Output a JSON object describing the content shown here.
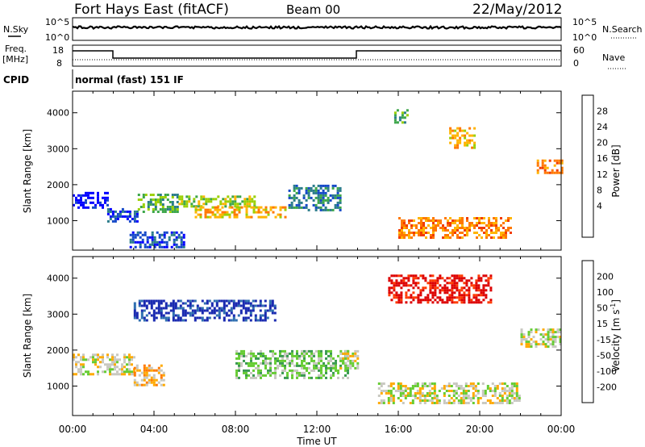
{
  "header": {
    "station": "Fort Hays East (fitACF)",
    "beam": "Beam 00",
    "date": "22/May/2012"
  },
  "strip_panels": {
    "left_labels": [
      "N.Sky",
      "Freq.",
      "[MHz]",
      "CPID"
    ],
    "right_labels": [
      "N.Search",
      "Nave"
    ],
    "noise_ticks_left": [
      "10^5",
      "10^0"
    ],
    "noise_ticks_right": [
      "10^5",
      "10^0"
    ],
    "freq_ticks": [
      "18",
      "8"
    ],
    "nave_ticks": [
      "60",
      "0"
    ],
    "cpid_text": "normal (fast) 151 IF"
  },
  "chart_data": [
    {
      "type": "heatmap",
      "name": "power",
      "ylabel": "Slant Range [km]",
      "xlabel": "",
      "x_ticks": [
        "00:00",
        "04:00",
        "08:00",
        "12:00",
        "16:00",
        "20:00",
        "00:00"
      ],
      "y_ticks": [
        1000,
        2000,
        3000,
        4000
      ],
      "xlim_hours": [
        0,
        24
      ],
      "ylim_km": [
        180,
        4600
      ],
      "colorbar": {
        "label": "Power [dB]",
        "ticks": [
          "28",
          "24",
          "20",
          "16",
          "12",
          "8",
          "4"
        ],
        "colors": [
          "#dd0000",
          "#f23b00",
          "#ff7800",
          "#ffb400",
          "#9ad000",
          "#3ca64a",
          "#2a7c8a",
          "#1448c8",
          "#0000ff"
        ]
      },
      "regions": [
        {
          "x": [
            0.0,
            1.7
          ],
          "y": [
            1350,
            1800
          ],
          "level": 8
        },
        {
          "x": [
            1.7,
            3.2
          ],
          "y": [
            950,
            1350
          ],
          "level": 7
        },
        {
          "x": [
            3.2,
            5.2
          ],
          "y": [
            1250,
            1750
          ],
          "level": 5
        },
        {
          "x": [
            5.2,
            9.0
          ],
          "y": [
            1400,
            1700
          ],
          "level": 4
        },
        {
          "x": [
            6.0,
            10.5
          ],
          "y": [
            1100,
            1400
          ],
          "level": 3
        },
        {
          "x": [
            2.8,
            5.5
          ],
          "y": [
            250,
            700
          ],
          "level": 7
        },
        {
          "x": [
            10.6,
            13.2
          ],
          "y": [
            1300,
            2000
          ],
          "level": 6
        },
        {
          "x": [
            15.8,
            16.5
          ],
          "y": [
            3700,
            4100
          ],
          "level": 5
        },
        {
          "x": [
            18.5,
            19.8
          ],
          "y": [
            3000,
            3600
          ],
          "level": 3
        },
        {
          "x": [
            16.0,
            21.5
          ],
          "y": [
            500,
            1100
          ],
          "level": 2
        },
        {
          "x": [
            22.8,
            24.0
          ],
          "y": [
            2300,
            2700
          ],
          "level": 2
        }
      ]
    },
    {
      "type": "heatmap",
      "name": "velocity",
      "ylabel": "Slant Range [km]",
      "xlabel": "Time UT",
      "x_ticks": [
        "00:00",
        "04:00",
        "08:00",
        "12:00",
        "16:00",
        "20:00",
        "00:00"
      ],
      "y_ticks": [
        1000,
        2000,
        3000,
        4000
      ],
      "xlim_hours": [
        0,
        24
      ],
      "ylim_km": [
        180,
        4600
      ],
      "colorbar": {
        "label": "Velocity [m s-1]",
        "label_main": "Velocity [m s",
        "label_exp": "-1",
        "label_tail": "]",
        "ticks": [
          "200",
          "100",
          "50",
          "15",
          "-15",
          "-50",
          "-100",
          "-200"
        ],
        "colors": [
          "#1a2ab0",
          "#2f6fb0",
          "#3a9a50",
          "#66cc33",
          "#c8c8c0",
          "#ffaa00",
          "#ff7a00",
          "#ff3a00",
          "#dd0000"
        ]
      },
      "regions": [
        {
          "x": [
            0.0,
            3.0
          ],
          "y": [
            1300,
            1900
          ],
          "level": 4
        },
        {
          "x": [
            3.0,
            4.5
          ],
          "y": [
            1000,
            1600
          ],
          "level": 5
        },
        {
          "x": [
            8.0,
            13.5
          ],
          "y": [
            1200,
            2000
          ],
          "level": 3
        },
        {
          "x": [
            13.0,
            14.0
          ],
          "y": [
            1500,
            2000
          ],
          "level": 4
        },
        {
          "x": [
            3.0,
            10.0
          ],
          "y": [
            2800,
            3400
          ],
          "level": 0
        },
        {
          "x": [
            15.5,
            20.5
          ],
          "y": [
            3300,
            4100
          ],
          "level": 8
        },
        {
          "x": [
            15.0,
            22.0
          ],
          "y": [
            500,
            1100
          ],
          "level": 4
        },
        {
          "x": [
            22.0,
            24.0
          ],
          "y": [
            2100,
            2600
          ],
          "level": 4
        }
      ]
    }
  ]
}
